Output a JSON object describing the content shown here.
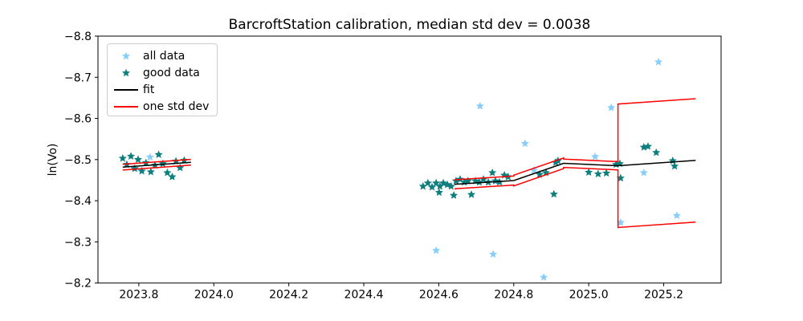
{
  "colors": {
    "all_data": "#87CEFA",
    "good_data": "#0e7f7f",
    "fit": "#000000",
    "std_dev": "#ff0000",
    "axis": "#000000",
    "legend_border": "#cccccc",
    "background": "#ffffff"
  },
  "chart_data": {
    "type": "scatter",
    "title": "BarcroftStation calibration, median std dev = 0.0038",
    "xlabel": "",
    "ylabel": "ln(Vo)",
    "y_axis_inverted": true,
    "grid": false,
    "xlim": [
      2023.691,
      2025.353
    ],
    "ylim_top_bottom": [
      -8.8,
      -8.2
    ],
    "x_ticks": [
      {
        "value": 2023.8,
        "label": "2023.8"
      },
      {
        "value": 2024.0,
        "label": "2024.0"
      },
      {
        "value": 2024.2,
        "label": "2024.2"
      },
      {
        "value": 2024.4,
        "label": "2024.4"
      },
      {
        "value": 2024.6,
        "label": "2024.6"
      },
      {
        "value": 2024.8,
        "label": "2024.8"
      },
      {
        "value": 2025.0,
        "label": "2025.0"
      },
      {
        "value": 2025.2,
        "label": "2025.2"
      }
    ],
    "y_ticks": [
      {
        "value": -8.8,
        "label": "−8.8"
      },
      {
        "value": -8.7,
        "label": "−8.7"
      },
      {
        "value": -8.6,
        "label": "−8.6"
      },
      {
        "value": -8.5,
        "label": "−8.5"
      },
      {
        "value": -8.4,
        "label": "−8.4"
      },
      {
        "value": -8.3,
        "label": "−8.3"
      },
      {
        "value": -8.2,
        "label": "−8.2"
      }
    ],
    "legend": {
      "position": "upper left",
      "items": [
        {
          "label": "all data",
          "marker": "star",
          "color": "#87CEFA"
        },
        {
          "label": "good data",
          "marker": "star",
          "color": "#0e7f7f"
        },
        {
          "label": "fit",
          "marker": "line",
          "color": "#000000"
        },
        {
          "label": "one std dev",
          "marker": "line",
          "color": "#ff0000"
        }
      ]
    },
    "series": [
      {
        "name": "all data",
        "type": "scatter",
        "marker": "star",
        "color": "#87CEFA",
        "points": [
          [
            2023.83,
            -8.506
          ],
          [
            2024.593,
            -8.279
          ],
          [
            2024.71,
            -8.63
          ],
          [
            2024.745,
            -8.27
          ],
          [
            2024.83,
            -8.539
          ],
          [
            2024.854,
            -8.474
          ],
          [
            2024.88,
            -8.214
          ],
          [
            2025.017,
            -8.507
          ],
          [
            2025.06,
            -8.626
          ],
          [
            2025.085,
            -8.347
          ],
          [
            2025.147,
            -8.468
          ],
          [
            2025.186,
            -8.737
          ],
          [
            2025.235,
            -8.364
          ]
        ]
      },
      {
        "name": "good data",
        "type": "scatter",
        "marker": "star",
        "color": "#0e7f7f",
        "points": [
          [
            2023.757,
            -8.503
          ],
          [
            2023.768,
            -8.488
          ],
          [
            2023.779,
            -8.508
          ],
          [
            2023.789,
            -8.478
          ],
          [
            2023.798,
            -8.5
          ],
          [
            2023.808,
            -8.472
          ],
          [
            2023.819,
            -8.492
          ],
          [
            2023.832,
            -8.47
          ],
          [
            2023.843,
            -8.486
          ],
          [
            2023.853,
            -8.512
          ],
          [
            2023.864,
            -8.49
          ],
          [
            2023.876,
            -8.468
          ],
          [
            2023.889,
            -8.458
          ],
          [
            2023.899,
            -8.496
          ],
          [
            2023.91,
            -8.48
          ],
          [
            2023.921,
            -8.498
          ],
          [
            2024.558,
            -8.435
          ],
          [
            2024.571,
            -8.443
          ],
          [
            2024.582,
            -8.433
          ],
          [
            2024.593,
            -8.443
          ],
          [
            2024.601,
            -8.42
          ],
          [
            2024.603,
            -8.435
          ],
          [
            2024.612,
            -8.443
          ],
          [
            2024.623,
            -8.439
          ],
          [
            2024.633,
            -8.435
          ],
          [
            2024.64,
            -8.413
          ],
          [
            2024.646,
            -8.448
          ],
          [
            2024.657,
            -8.452
          ],
          [
            2024.668,
            -8.445
          ],
          [
            2024.678,
            -8.448
          ],
          [
            2024.687,
            -8.415
          ],
          [
            2024.698,
            -8.448
          ],
          [
            2024.708,
            -8.445
          ],
          [
            2024.719,
            -8.452
          ],
          [
            2024.732,
            -8.445
          ],
          [
            2024.743,
            -8.468
          ],
          [
            2024.751,
            -8.448
          ],
          [
            2024.762,
            -8.445
          ],
          [
            2024.775,
            -8.462
          ],
          [
            2024.785,
            -8.458
          ],
          [
            2024.869,
            -8.464
          ],
          [
            2024.886,
            -8.468
          ],
          [
            2024.907,
            -8.416
          ],
          [
            2024.912,
            -8.493
          ],
          [
            2024.918,
            -8.497
          ],
          [
            2025.0,
            -8.469
          ],
          [
            2025.025,
            -8.465
          ],
          [
            2025.047,
            -8.467
          ],
          [
            2025.073,
            -8.488
          ],
          [
            2025.083,
            -8.49
          ],
          [
            2025.085,
            -8.455
          ],
          [
            2025.147,
            -8.53
          ],
          [
            2025.158,
            -8.532
          ],
          [
            2025.18,
            -8.517
          ],
          [
            2025.224,
            -8.497
          ],
          [
            2025.229,
            -8.484
          ]
        ]
      },
      {
        "name": "fit",
        "type": "line",
        "color": "#000000",
        "width": 1.5,
        "segments": [
          [
            [
              2023.757,
              -8.4815
            ],
            [
              2023.939,
              -8.4935
            ]
          ],
          [
            [
              2024.642,
              -8.44
            ],
            [
              2024.8,
              -8.449
            ],
            [
              2024.933,
              -8.491
            ],
            [
              2025.078,
              -8.485
            ],
            [
              2025.285,
              -8.498
            ]
          ]
        ]
      },
      {
        "name": "one std dev",
        "type": "line",
        "color": "#ff0000",
        "width": 1.5,
        "segments": [
          [
            [
              2023.757,
              -8.4885
            ],
            [
              2023.939,
              -8.5005
            ]
          ],
          [
            [
              2023.757,
              -8.4745
            ],
            [
              2023.939,
              -8.4865
            ]
          ],
          [
            [
              2024.642,
              -8.451
            ],
            [
              2024.8,
              -8.46
            ],
            [
              2024.8,
              -8.462
            ],
            [
              2024.933,
              -8.504
            ],
            [
              2024.933,
              -8.501
            ],
            [
              2025.078,
              -8.495
            ],
            [
              2025.078,
              -8.635
            ],
            [
              2025.285,
              -8.648
            ]
          ],
          [
            [
              2024.642,
              -8.429
            ],
            [
              2024.8,
              -8.438
            ],
            [
              2024.8,
              -8.436
            ],
            [
              2024.933,
              -8.478
            ],
            [
              2024.933,
              -8.481
            ],
            [
              2025.078,
              -8.475
            ],
            [
              2025.078,
              -8.335
            ],
            [
              2025.285,
              -8.348
            ]
          ]
        ]
      }
    ]
  }
}
